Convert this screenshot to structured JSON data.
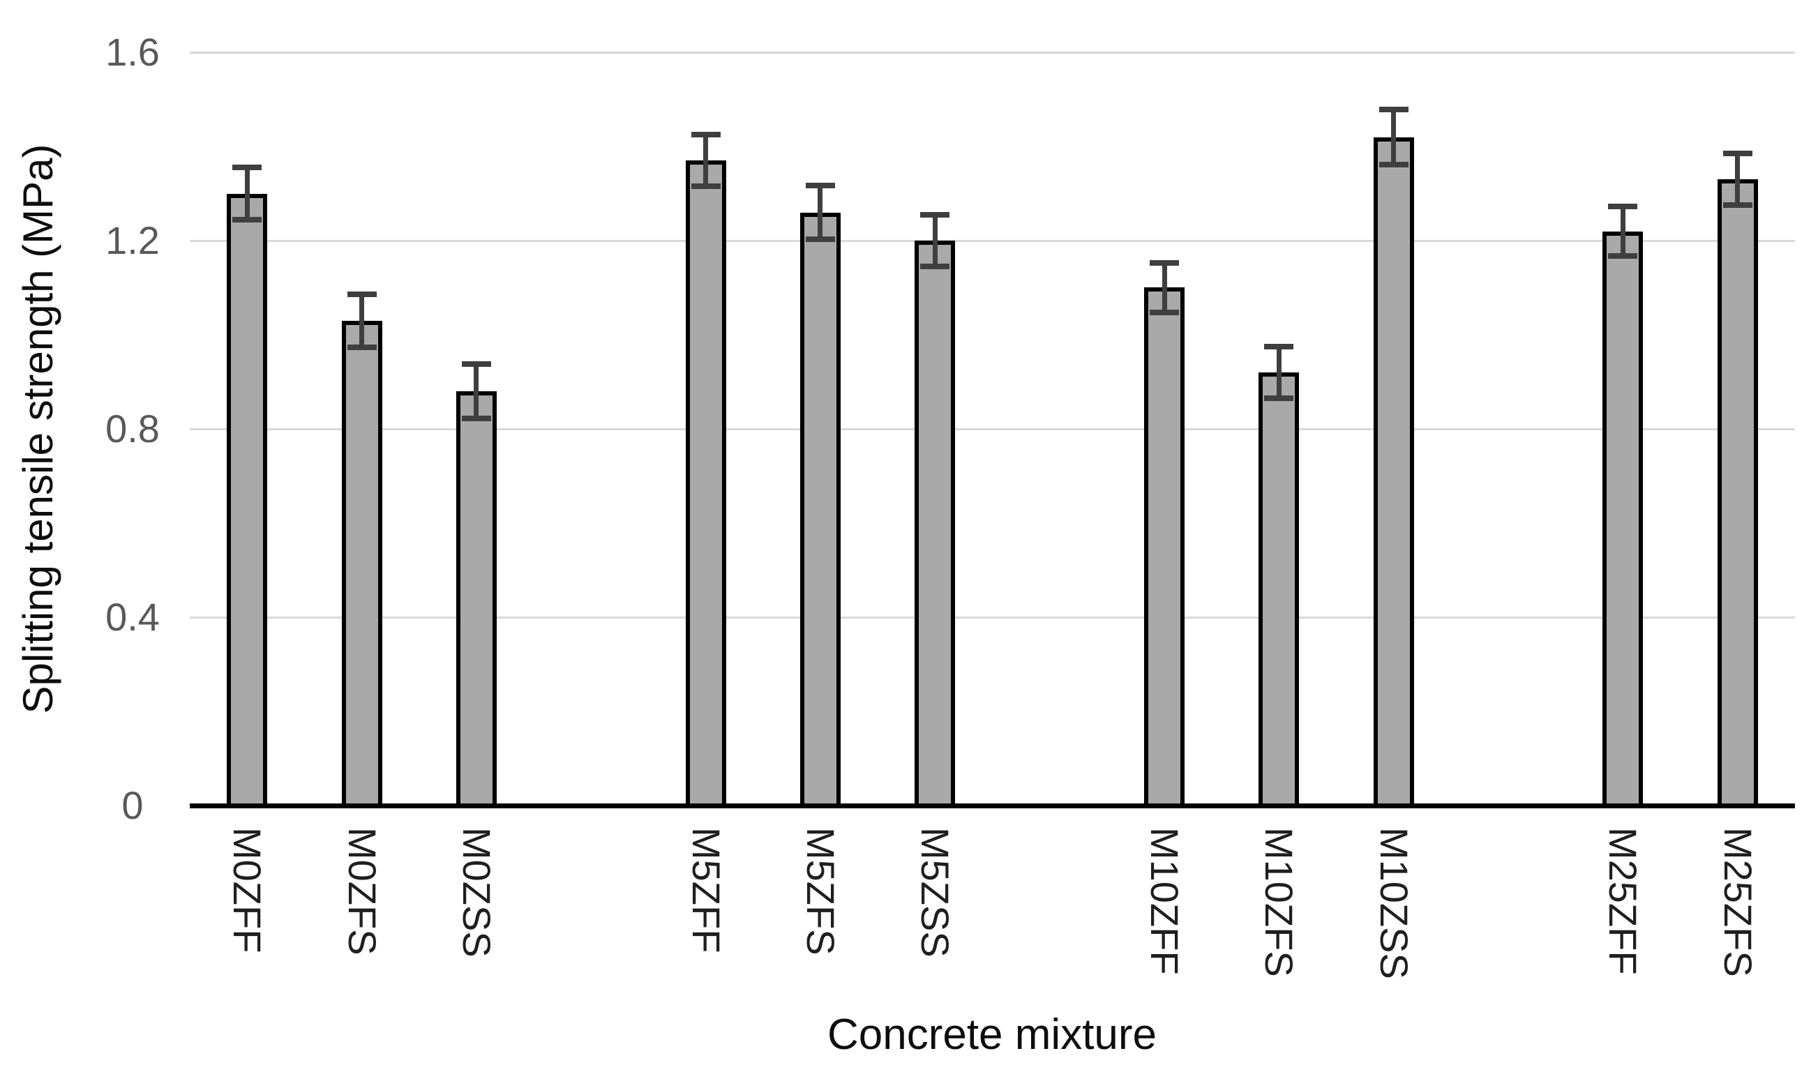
{
  "chart_data": {
    "type": "bar",
    "title": "",
    "xlabel": "Concrete mixture",
    "ylabel": "Splitting tensile strength (MPa)",
    "ylim": [
      0,
      1.6
    ],
    "yticks": [
      0,
      0.4,
      0.8,
      1.2,
      1.6
    ],
    "ytick_labels": [
      "0",
      "0.4",
      "0.8",
      "1.2",
      "1.6"
    ],
    "grid": true,
    "legend": "none",
    "bar_fill_color": "#a9a9a9",
    "bar_border_color": "#000000",
    "error_bar_color": "#3f3f3f",
    "gridline_color": "#d9d9d9",
    "axis_line_color": "#000000",
    "tick_label_color": "#595959",
    "categories": [
      "M0ZFF",
      "M0ZFS",
      "M0ZSS",
      "M5ZFF",
      "M5ZFS",
      "M5ZSS",
      "M10ZFF",
      "M10ZFS",
      "M10ZSS",
      "M25ZFF",
      "M25ZFS"
    ],
    "values": [
      1.3,
      1.03,
      0.88,
      1.37,
      1.26,
      1.2,
      1.1,
      0.92,
      1.42,
      1.22,
      1.33
    ],
    "errors": [
      0.055,
      0.056,
      0.058,
      0.055,
      0.057,
      0.055,
      0.052,
      0.055,
      0.058,
      0.053,
      0.055
    ],
    "groups": [
      {
        "categories": [
          "M0ZFF",
          "M0ZFS",
          "M0ZSS"
        ],
        "values": [
          1.3,
          1.03,
          0.88
        ],
        "errors": [
          0.055,
          0.056,
          0.058
        ]
      },
      {
        "categories": [
          "M5ZFF",
          "M5ZFS",
          "M5ZSS"
        ],
        "values": [
          1.37,
          1.26,
          1.2
        ],
        "errors": [
          0.055,
          0.057,
          0.055
        ]
      },
      {
        "categories": [
          "M10ZFF",
          "M10ZFS",
          "M10ZSS"
        ],
        "values": [
          1.1,
          0.92,
          1.42
        ],
        "errors": [
          0.052,
          0.055,
          0.058
        ]
      },
      {
        "categories": [
          "M25ZFF",
          "M25ZFS"
        ],
        "values": [
          1.22,
          1.33
        ],
        "errors": [
          0.053,
          0.055
        ]
      }
    ]
  }
}
